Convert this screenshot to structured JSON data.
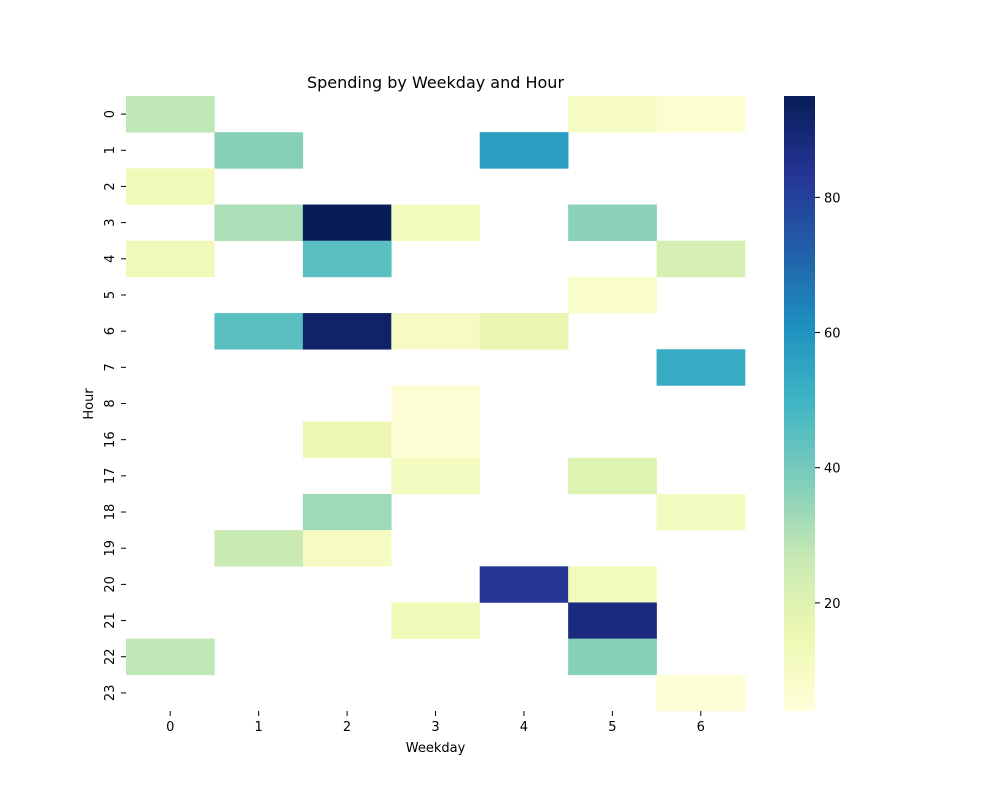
{
  "chart_data": {
    "type": "heatmap",
    "title": "Spending by Weekday and Hour",
    "xlabel": "Weekday",
    "ylabel": "Hour",
    "x_categories": [
      "0",
      "1",
      "2",
      "3",
      "4",
      "5",
      "6"
    ],
    "y_categories": [
      "0",
      "1",
      "2",
      "3",
      "4",
      "5",
      "6",
      "7",
      "8",
      "16",
      "17",
      "18",
      "19",
      "20",
      "21",
      "22",
      "23"
    ],
    "values": [
      [
        28,
        null,
        null,
        null,
        null,
        10,
        6
      ],
      [
        null,
        37,
        null,
        null,
        57,
        null,
        null
      ],
      [
        13,
        null,
        null,
        null,
        null,
        null,
        null
      ],
      [
        null,
        31,
        95,
        12,
        null,
        36,
        null
      ],
      [
        13,
        null,
        45,
        null,
        null,
        null,
        22
      ],
      [
        null,
        null,
        null,
        null,
        null,
        8,
        null
      ],
      [
        null,
        45,
        92,
        10,
        17,
        null,
        null
      ],
      [
        null,
        null,
        null,
        null,
        null,
        null,
        53
      ],
      [
        null,
        null,
        null,
        5,
        null,
        null,
        null
      ],
      [
        null,
        null,
        15,
        5,
        null,
        null,
        null
      ],
      [
        null,
        null,
        null,
        11,
        null,
        20,
        null
      ],
      [
        null,
        null,
        33,
        null,
        null,
        null,
        11
      ],
      [
        null,
        26,
        10,
        null,
        null,
        null,
        null
      ],
      [
        null,
        null,
        null,
        null,
        83,
        12,
        null
      ],
      [
        null,
        null,
        null,
        13,
        null,
        88,
        null
      ],
      [
        28,
        null,
        null,
        null,
        null,
        37,
        null
      ],
      [
        null,
        null,
        null,
        null,
        null,
        null,
        5
      ]
    ],
    "colormap": "YlGnBu",
    "colorbar": {
      "min": 4,
      "max": 95,
      "ticks": [
        20,
        40,
        60,
        80
      ]
    },
    "colorscale": [
      "#ffffd9",
      "#edf8b1",
      "#c7e9b4",
      "#7fcdbb",
      "#41b6c4",
      "#1d91c0",
      "#225ea8",
      "#253494",
      "#081d58"
    ],
    "grid": false,
    "legend": "colorbar-right"
  }
}
